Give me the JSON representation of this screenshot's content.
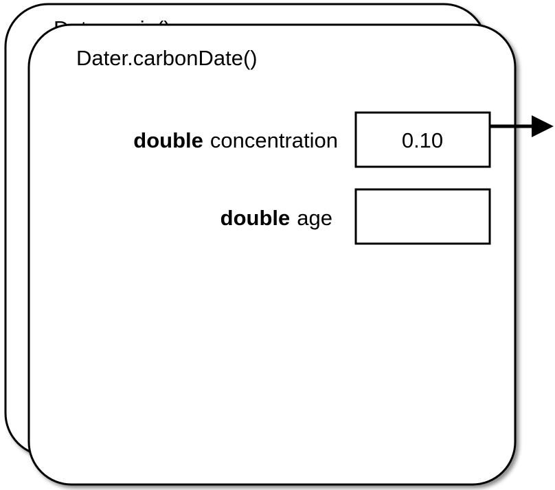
{
  "frames": [
    {
      "label": "Dater.main()"
    },
    {
      "label": "Dater.carbonDate()",
      "variables": [
        {
          "type": "double",
          "name": "concentration",
          "value": "0.10"
        },
        {
          "type": "double",
          "name": "age"
        }
      ]
    }
  ]
}
